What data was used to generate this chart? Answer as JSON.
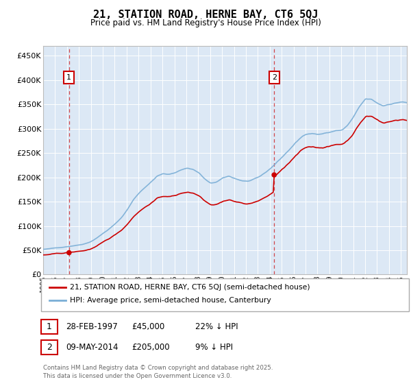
{
  "title": "21, STATION ROAD, HERNE BAY, CT6 5QJ",
  "subtitle": "Price paid vs. HM Land Registry's House Price Index (HPI)",
  "property_label": "21, STATION ROAD, HERNE BAY, CT6 5QJ (semi-detached house)",
  "hpi_label": "HPI: Average price, semi-detached house, Canterbury",
  "transaction1_date": "28-FEB-1997",
  "transaction1_price": 45000,
  "transaction1_note": "22% ↓ HPI",
  "transaction2_date": "09-MAY-2014",
  "transaction2_price": 205000,
  "transaction2_note": "9% ↓ HPI",
  "footer": "Contains HM Land Registry data © Crown copyright and database right 2025.\nThis data is licensed under the Open Government Licence v3.0.",
  "line_color_property": "#cc0000",
  "line_color_hpi": "#7aaed6",
  "background_color": "#dce8f5",
  "ylim": [
    0,
    470000
  ],
  "xlim_start": 1995,
  "xlim_end": 2025.5,
  "t1_x": 1997.17,
  "t1_y": 45000,
  "t2_x": 2014.37,
  "t2_y": 205000,
  "hpi_at_t1": 58000,
  "hpi_at_t2": 225000
}
